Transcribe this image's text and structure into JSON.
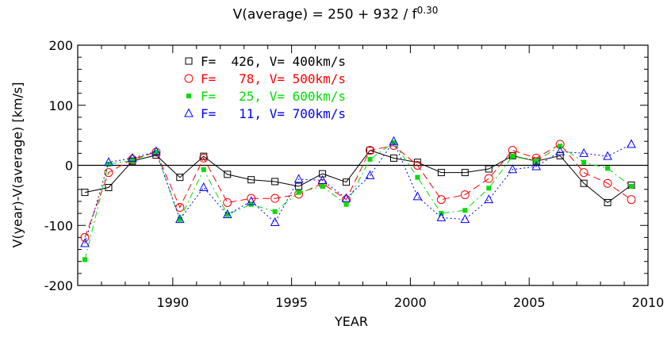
{
  "chart_data": {
    "type": "line",
    "title_main": "V(average) = 250 + 932 / f",
    "title_exponent": "0.30",
    "xlabel": "YEAR",
    "ylabel": "V(year)-V(average) [km/s]",
    "xlim": [
      1986,
      2010
    ],
    "ylim": [
      -200,
      200
    ],
    "xticks": [
      1990,
      1995,
      2000,
      2005,
      2010
    ],
    "yticks": [
      -200,
      -100,
      0,
      100,
      200
    ],
    "grid": false,
    "legend_position": "top-left",
    "x": [
      1986.3,
      1987.3,
      1988.3,
      1989.3,
      1990.3,
      1991.3,
      1992.3,
      1993.3,
      1994.3,
      1995.3,
      1996.3,
      1997.3,
      1998.3,
      1999.3,
      2000.3,
      2001.3,
      2002.3,
      2003.3,
      2004.3,
      2005.3,
      2006.3,
      2007.3,
      2008.3,
      2009.3
    ],
    "series": [
      {
        "name": "F=  426, V= 400km/s",
        "color": "#000000",
        "marker": "square-open",
        "dash": "solid",
        "values": [
          -45,
          -37,
          7,
          17,
          -20,
          15,
          -15,
          -24,
          -27,
          -35,
          -14,
          -28,
          25,
          12,
          5,
          -12,
          -12,
          -6,
          16,
          7,
          16,
          -30,
          -62,
          -33
        ]
      },
      {
        "name": "F=   78, V= 500km/s",
        "color": "#ff0000",
        "marker": "circle-open",
        "dash": "dashed",
        "values": [
          -120,
          -12,
          10,
          22,
          -70,
          12,
          -62,
          -55,
          -55,
          -48,
          -30,
          -57,
          25,
          33,
          0,
          -57,
          -49,
          -22,
          25,
          12,
          35,
          -12,
          -30,
          -57
        ]
      },
      {
        "name": "F=   25, V= 600km/s",
        "color": "#00dd00",
        "marker": "square-filled",
        "dash": "dashdot",
        "values": [
          -157,
          2,
          8,
          22,
          -90,
          -7,
          -82,
          -65,
          -77,
          -45,
          -35,
          -65,
          10,
          38,
          -20,
          -80,
          -75,
          -38,
          15,
          7,
          32,
          5,
          -5,
          -35
        ]
      },
      {
        "name": "F=   11, V= 700km/s",
        "color": "#0000ff",
        "marker": "triangle-open",
        "dash": "dotted",
        "values": [
          -130,
          5,
          12,
          23,
          -90,
          -37,
          -82,
          -60,
          -95,
          -23,
          -25,
          -55,
          -17,
          40,
          -52,
          -87,
          -90,
          -57,
          -7,
          -2,
          23,
          20,
          15,
          35
        ]
      }
    ]
  }
}
